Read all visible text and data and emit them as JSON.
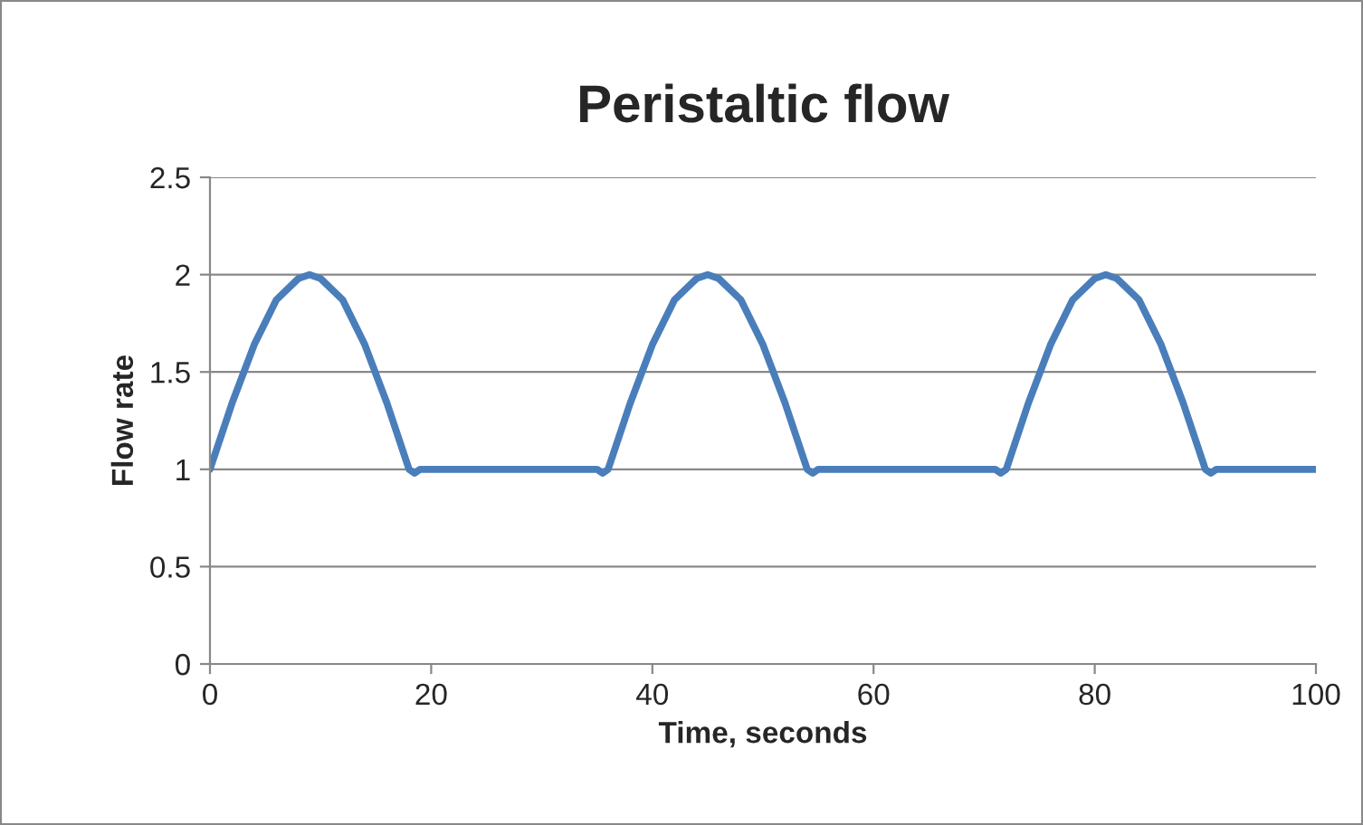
{
  "chart_data": {
    "type": "line",
    "title": "Peristaltic flow",
    "xlabel": "Time, seconds",
    "ylabel": "Flow rate",
    "xlim": [
      0,
      100
    ],
    "xticks": [
      0,
      20,
      40,
      60,
      80,
      100
    ],
    "ylim": [
      0,
      2.5
    ],
    "yticks": [
      0,
      {
        "value": 0.5,
        "label": "0.5"
      },
      1,
      {
        "value": 1.5,
        "label": "1.5"
      },
      2,
      {
        "value": 2.5,
        "label": "2.5"
      }
    ],
    "grid": "y",
    "legend": false,
    "marker": "none",
    "line_style": "solid",
    "series": [
      {
        "color": "#4a7ebb",
        "x": [
          0,
          2,
          4,
          6,
          8,
          9,
          10,
          12,
          14,
          16,
          18,
          18.5,
          19,
          35,
          35.5,
          36,
          38,
          40,
          42,
          44,
          45,
          46,
          48,
          50,
          52,
          54,
          54.5,
          55,
          71,
          71.5,
          72,
          74,
          76,
          78,
          80,
          81,
          82,
          84,
          86,
          88,
          90,
          90.5,
          91,
          100
        ],
        "values": [
          1,
          1.34,
          1.64,
          1.87,
          1.98,
          2,
          1.98,
          1.87,
          1.64,
          1.34,
          1,
          0.98,
          1,
          1,
          0.98,
          1,
          1.34,
          1.64,
          1.87,
          1.98,
          2,
          1.98,
          1.87,
          1.64,
          1.34,
          1,
          0.98,
          1,
          1,
          0.98,
          1,
          1.34,
          1.64,
          1.87,
          1.98,
          2,
          1.98,
          1.87,
          1.64,
          1.34,
          1,
          0.98,
          1,
          1
        ]
      }
    ]
  }
}
